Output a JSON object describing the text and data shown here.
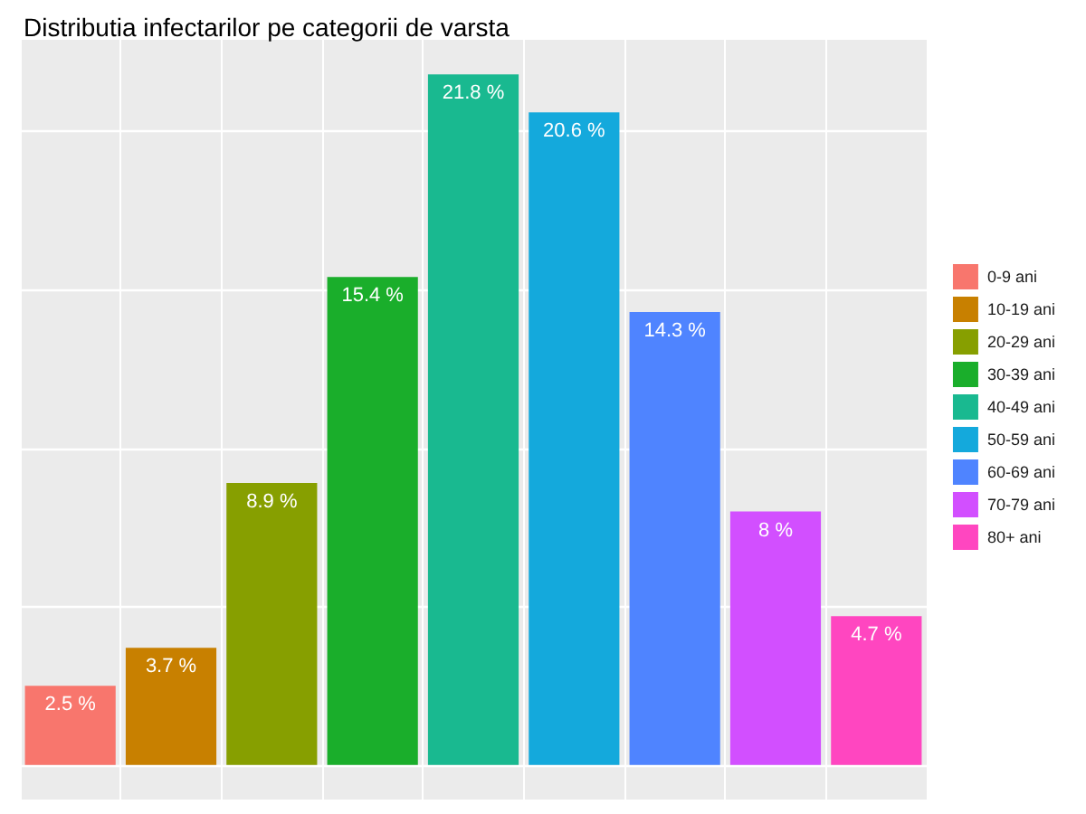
{
  "chart_data": {
    "type": "bar",
    "title": "Distributia infectarilor pe categorii de varsta",
    "categories": [
      null,
      null,
      null,
      null,
      null,
      null,
      null,
      null,
      null
    ],
    "stacked": true,
    "series": [
      {
        "name": "0-9 ani",
        "color": "#f8766d",
        "values": [
          2.5,
          0,
          0,
          0,
          0,
          0,
          0,
          0,
          0
        ],
        "value_labels": [
          "2.5 %",
          null,
          null,
          null,
          null,
          null,
          null,
          null,
          null
        ]
      },
      {
        "name": "10-19 ani",
        "color": "#c88000",
        "values": [
          0,
          3.7,
          0,
          0,
          0,
          0,
          0,
          0,
          0
        ],
        "value_labels": [
          null,
          "3.7 %",
          null,
          null,
          null,
          null,
          null,
          null,
          null
        ]
      },
      {
        "name": "20-29 ani",
        "color": "#879f00",
        "values": [
          0,
          0,
          8.9,
          0,
          0,
          0,
          0,
          0,
          0
        ],
        "value_labels": [
          null,
          null,
          "8.9 %",
          null,
          null,
          null,
          null,
          null,
          null
        ]
      },
      {
        "name": "30-39 ani",
        "color": "#1aae2b",
        "values": [
          0,
          0,
          0,
          15.4,
          0,
          0,
          0,
          0,
          0
        ],
        "value_labels": [
          null,
          null,
          null,
          "15.4 %",
          null,
          null,
          null,
          null,
          null
        ]
      },
      {
        "name": "40-49 ani",
        "color": "#19b990",
        "values": [
          0,
          0,
          0,
          0,
          21.8,
          0,
          0,
          0,
          0
        ],
        "value_labels": [
          null,
          null,
          null,
          null,
          "21.8 %",
          null,
          null,
          null,
          null
        ]
      },
      {
        "name": "50-59 ani",
        "color": "#14a9dc",
        "values": [
          0,
          0,
          0,
          0,
          0,
          20.6,
          0,
          0,
          0
        ],
        "value_labels": [
          null,
          null,
          null,
          null,
          null,
          "20.6 %",
          null,
          null,
          null
        ]
      },
      {
        "name": "60-69 ani",
        "color": "#4f84ff",
        "values": [
          0,
          0,
          0,
          0,
          0,
          0,
          14.3,
          0,
          0
        ],
        "value_labels": [
          null,
          null,
          null,
          null,
          null,
          null,
          "14.3 %",
          null,
          null
        ]
      },
      {
        "name": "70-79 ani",
        "color": "#d24fff",
        "values": [
          0,
          0,
          0,
          0,
          0,
          0,
          0,
          8,
          0
        ],
        "value_labels": [
          null,
          null,
          null,
          null,
          null,
          null,
          null,
          "8 %",
          null
        ]
      },
      {
        "name": "80+ ani",
        "color": "#ff46c0",
        "values": [
          0,
          0,
          0,
          0,
          0,
          0,
          0,
          0,
          4.7
        ],
        "value_labels": [
          null,
          null,
          null,
          null,
          null,
          null,
          null,
          null,
          "4.7 %"
        ]
      }
    ],
    "ylim": [
      -1.09,
      22.89
    ],
    "yticks": [
      {
        "value": 0,
        "label": null
      },
      {
        "value": 5,
        "label": null
      },
      {
        "value": 10,
        "label": null
      },
      {
        "value": 15,
        "label": null
      },
      {
        "value": 20,
        "label": null
      }
    ],
    "grid": true,
    "legend": "right"
  }
}
